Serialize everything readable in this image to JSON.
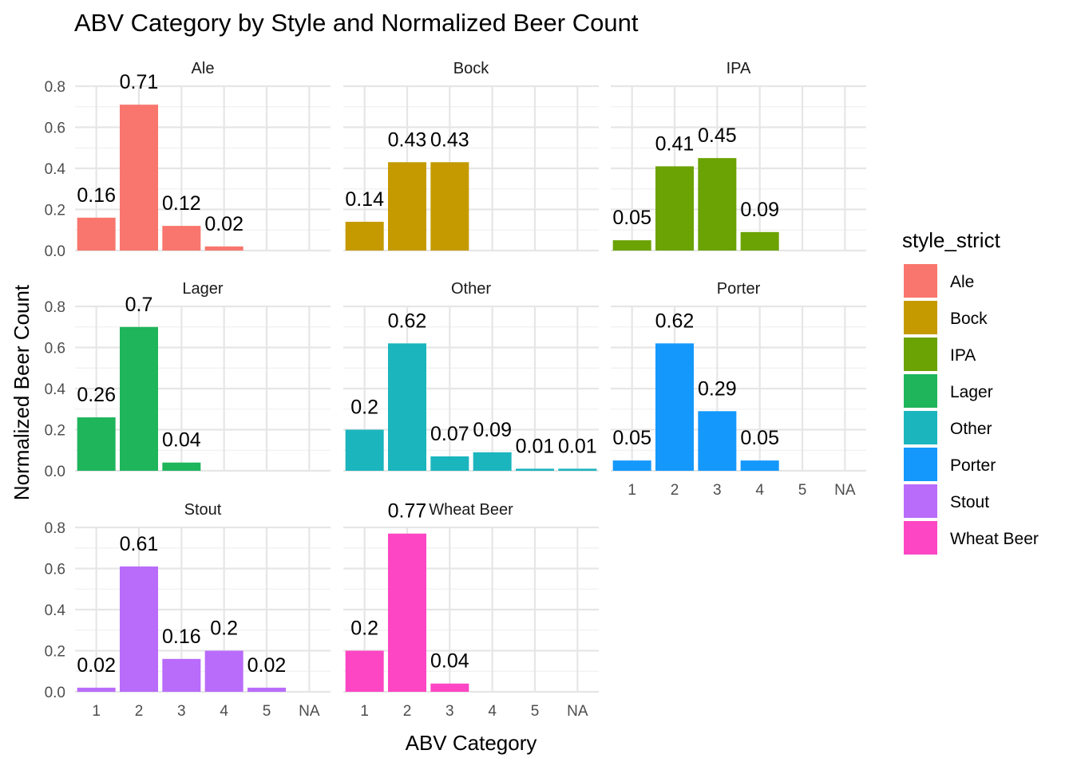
{
  "chart_data": {
    "type": "bar",
    "title": "ABV Category by Style and Normalized Beer Count",
    "xlabel": "ABV Category",
    "ylabel": "Normalized Beer Count",
    "categories": [
      "1",
      "2",
      "3",
      "4",
      "5",
      "NA"
    ],
    "y_ticks": [
      "0.0",
      "0.2",
      "0.4",
      "0.6",
      "0.8"
    ],
    "ylim": [
      0,
      0.8
    ],
    "grid": true,
    "legend": {
      "title": "style_strict",
      "position": "right",
      "entries": [
        "Ale",
        "Bock",
        "IPA",
        "Lager",
        "Other",
        "Porter",
        "Stout",
        "Wheat Beer"
      ]
    },
    "facets": [
      {
        "name": "Ale",
        "color": "#F8766D",
        "values": [
          0.16,
          0.71,
          0.12,
          0.02,
          null,
          null
        ],
        "labels": [
          "0.16",
          "0.71",
          "0.12",
          "0.02",
          "",
          ""
        ]
      },
      {
        "name": "Bock",
        "color": "#C49A00",
        "values": [
          0.14,
          0.43,
          0.43,
          null,
          null,
          null
        ],
        "labels": [
          "0.14",
          "0.43",
          "0.43",
          "",
          "",
          ""
        ]
      },
      {
        "name": "IPA",
        "color": "#6BA204",
        "values": [
          0.05,
          0.41,
          0.45,
          0.09,
          null,
          null
        ],
        "labels": [
          "0.05",
          "0.41",
          "0.45",
          "0.09",
          "",
          ""
        ]
      },
      {
        "name": "Lager",
        "color": "#1EB55B",
        "values": [
          0.26,
          0.7,
          0.04,
          null,
          null,
          null
        ],
        "labels": [
          "0.26",
          "0.7",
          "0.04",
          "",
          "",
          ""
        ]
      },
      {
        "name": "Other",
        "color": "#1BB5BD",
        "values": [
          0.2,
          0.62,
          0.07,
          0.09,
          0.01,
          0.01
        ],
        "labels": [
          "0.2",
          "0.62",
          "0.07",
          "0.09",
          "0.01",
          "0.01"
        ]
      },
      {
        "name": "Porter",
        "color": "#1598FC",
        "values": [
          0.05,
          0.62,
          0.29,
          0.05,
          null,
          null
        ],
        "labels": [
          "0.05",
          "0.62",
          "0.29",
          "0.05",
          "",
          ""
        ]
      },
      {
        "name": "Stout",
        "color": "#B96BFA",
        "values": [
          0.02,
          0.61,
          0.16,
          0.2,
          0.02,
          null
        ],
        "labels": [
          "0.02",
          "0.61",
          "0.16",
          "0.2",
          "0.02",
          ""
        ]
      },
      {
        "name": "Wheat Beer",
        "color": "#FD46C4",
        "values": [
          0.2,
          0.77,
          0.04,
          null,
          null,
          null
        ],
        "labels": [
          "0.2",
          "0.77",
          "0.04",
          "",
          "",
          ""
        ]
      }
    ]
  }
}
